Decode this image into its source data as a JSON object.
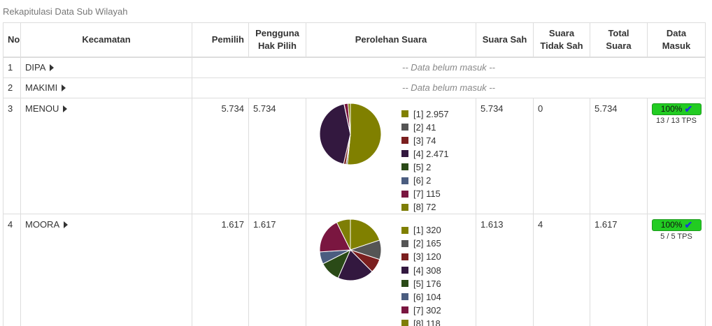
{
  "caption": "Rekapitulasi Data Sub Wilayah",
  "headers": {
    "no": "No",
    "kecamatan": "Kecamatan",
    "pemilih": "Pemilih",
    "pengguna": "Pengguna Hak Pilih",
    "perolehan": "Perolehan Suara",
    "sah": "Suara Sah",
    "tidak_sah": "Suara Tidak Sah",
    "total": "Total Suara",
    "masuk": "Data Masuk"
  },
  "colors": [
    "#808000",
    "#555555",
    "#7b1f1f",
    "#33183f",
    "#2a4a17",
    "#4b5d80",
    "#7a1640",
    "#7e7e06"
  ],
  "rows": [
    {
      "no": "1",
      "kecamatan": "DIPA",
      "status": "-- Data belum masuk --"
    },
    {
      "no": "2",
      "kecamatan": "MAKIMI",
      "status": "-- Data belum masuk --"
    },
    {
      "no": "3",
      "kecamatan": "MENOU",
      "pemilih": "5.734",
      "pengguna": "5.734",
      "votes": [
        {
          "label": "[1] 2.957",
          "value": 2957
        },
        {
          "label": "[2] 41",
          "value": 41
        },
        {
          "label": "[3] 74",
          "value": 74
        },
        {
          "label": "[4] 2.471",
          "value": 2471
        },
        {
          "label": "[5] 2",
          "value": 2
        },
        {
          "label": "[6] 2",
          "value": 2
        },
        {
          "label": "[7] 115",
          "value": 115
        },
        {
          "label": "[8] 72",
          "value": 72
        }
      ],
      "sah": "5.734",
      "tidak_sah": "0",
      "total": "5.734",
      "progress": 100,
      "badge": "100%",
      "tps": "13 / 13 TPS"
    },
    {
      "no": "4",
      "kecamatan": "MOORA",
      "pemilih": "1.617",
      "pengguna": "1.617",
      "votes": [
        {
          "label": "[1] 320",
          "value": 320
        },
        {
          "label": "[2] 165",
          "value": 165
        },
        {
          "label": "[3] 120",
          "value": 120
        },
        {
          "label": "[4] 308",
          "value": 308
        },
        {
          "label": "[5] 176",
          "value": 176
        },
        {
          "label": "[6] 104",
          "value": 104
        },
        {
          "label": "[7] 302",
          "value": 302
        },
        {
          "label": "[8] 118",
          "value": 118
        }
      ],
      "sah": "1.613",
      "tidak_sah": "4",
      "total": "1.617",
      "progress": 100,
      "badge": "100%",
      "tps": "5 / 5 TPS"
    }
  ]
}
